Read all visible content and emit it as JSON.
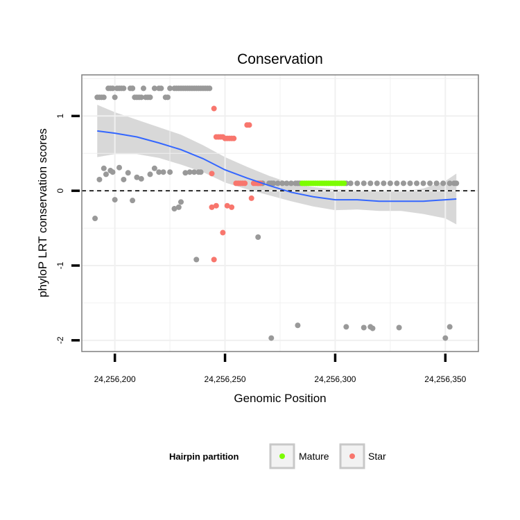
{
  "chart_data": {
    "type": "scatter",
    "title": "Conservation",
    "xlabel": "Genomic Position",
    "ylabel": "phyloP LRT conservation scores",
    "xlim": [
      24256185,
      24256365
    ],
    "ylim": [
      -2.15,
      1.55
    ],
    "x_ticks": [
      24256200,
      24256250,
      24256300,
      24256350
    ],
    "x_tick_labels": [
      "24,256,200",
      "24,256,250",
      "24,256,300",
      "24,256,350"
    ],
    "y_ticks": [
      -2,
      -1,
      0,
      1
    ],
    "y_tick_labels": [
      "-2",
      "-1",
      "0",
      "1"
    ],
    "grid": true,
    "reference_line": {
      "y": 0,
      "style": "dashed"
    },
    "legend": {
      "title": "Hairpin partition",
      "position": "bottom",
      "entries": [
        {
          "label": "Mature",
          "color": "#7cfc00"
        },
        {
          "label": "Star",
          "color": "#f8766d"
        }
      ]
    },
    "colors": {
      "other": "#999999",
      "mature": "#7cfc00",
      "star": "#f8766d",
      "smooth": "#3366ff",
      "band": "#d4d4d4"
    },
    "series": [
      {
        "name": "Other",
        "x": [
          24256192,
          24256193,
          24256194,
          24256195,
          24256197,
          24256198,
          24256199,
          24256200,
          24256201,
          24256202,
          24256203,
          24256204,
          24256207,
          24256208,
          24256208,
          24256209,
          24256210,
          24256211,
          24256212,
          24256213,
          24256214,
          24256215,
          24256216,
          24256218,
          24256220,
          24256221,
          24256223,
          24256224,
          24256225,
          24256227,
          24256228,
          24256229,
          24256230,
          24256231,
          24256232,
          24256233,
          24256234,
          24256235,
          24256236,
          24256237,
          24256238,
          24256239,
          24256240,
          24256241,
          24256242,
          24256243,
          24256265,
          24256266,
          24256267,
          24256267,
          24256270,
          24256271,
          24256272,
          24256274,
          24256276,
          24256278,
          24256280,
          24256282,
          24256283,
          24256284,
          24256305,
          24256307,
          24256310,
          24256313,
          24256316,
          24256319,
          24256322,
          24256325,
          24256328,
          24256331,
          24256334,
          24256337,
          24256340,
          24256343,
          24256346,
          24256349,
          24256352,
          24256354,
          24256355,
          24256191,
          24256193,
          24256195,
          24256196,
          24256198,
          24256199,
          24256200,
          24256202,
          24256204,
          24256206,
          24256208,
          24256210,
          24256212,
          24256216,
          24256218,
          24256220,
          24256222,
          24256225,
          24256227,
          24256229,
          24256230,
          24256232,
          24256234,
          24256236,
          24256237,
          24256238,
          24256239,
          24256265,
          24256271,
          24256283,
          24256305,
          24256313,
          24256316,
          24256317,
          24256329,
          24256350,
          24256352
        ],
        "y": [
          1.25,
          1.25,
          1.25,
          1.25,
          1.37,
          1.37,
          1.37,
          1.25,
          1.37,
          1.37,
          1.37,
          1.37,
          1.37,
          1.37,
          1.37,
          1.25,
          1.25,
          1.25,
          1.25,
          1.37,
          1.25,
          1.25,
          1.25,
          1.37,
          1.37,
          1.37,
          1.25,
          1.25,
          1.37,
          1.37,
          1.37,
          1.37,
          1.37,
          1.37,
          1.37,
          1.37,
          1.37,
          1.37,
          1.37,
          1.37,
          1.37,
          1.37,
          1.37,
          1.37,
          1.37,
          1.37,
          0.1,
          0.1,
          0.1,
          0.1,
          0.1,
          0.1,
          0.1,
          0.1,
          0.1,
          0.1,
          0.1,
          0.1,
          0.1,
          0.1,
          0.1,
          0.1,
          0.1,
          0.1,
          0.1,
          0.1,
          0.1,
          0.1,
          0.1,
          0.1,
          0.1,
          0.1,
          0.1,
          0.1,
          0.1,
          0.1,
          0.1,
          0.1,
          0.1,
          -0.37,
          0.15,
          0.3,
          0.22,
          0.27,
          0.25,
          -0.12,
          0.31,
          0.15,
          0.24,
          -0.13,
          0.18,
          0.16,
          0.22,
          0.3,
          0.25,
          0.25,
          0.25,
          -0.24,
          -0.22,
          -0.15,
          0.24,
          0.25,
          0.25,
          -0.92,
          0.25,
          0.25,
          -0.62,
          -1.97,
          -1.8,
          -1.82,
          -1.83,
          -1.82,
          -1.84,
          -1.83,
          -1.97,
          -1.82
        ]
      },
      {
        "name": "Mature",
        "x": [
          24256285,
          24256286,
          24256287,
          24256288,
          24256289,
          24256290,
          24256291,
          24256292,
          24256293,
          24256294,
          24256295,
          24256296,
          24256297,
          24256298,
          24256299,
          24256300,
          24256301,
          24256302,
          24256303,
          24256304
        ],
        "y": [
          0.1,
          0.1,
          0.1,
          0.1,
          0.1,
          0.1,
          0.1,
          0.1,
          0.1,
          0.1,
          0.1,
          0.1,
          0.1,
          0.1,
          0.1,
          0.1,
          0.1,
          0.1,
          0.1,
          0.1
        ]
      },
      {
        "name": "Star",
        "x": [
          24256245,
          24256246,
          24256247,
          24256248,
          24256249,
          24256250,
          24256251,
          24256252,
          24256253,
          24256254,
          24256255,
          24256256,
          24256257,
          24256258,
          24256259,
          24256260,
          24256261,
          24256262,
          24256263,
          24256264,
          24256265,
          24256266,
          24256244,
          24256244,
          24256246,
          24256245,
          24256249,
          24256251,
          24256253
        ],
        "y": [
          1.1,
          0.72,
          0.72,
          0.72,
          0.72,
          0.7,
          0.7,
          0.7,
          0.7,
          0.7,
          0.1,
          0.1,
          0.1,
          0.1,
          0.1,
          0.88,
          0.88,
          -0.1,
          0.1,
          0.1,
          0.1,
          0.1,
          0.23,
          -0.22,
          -0.2,
          -0.92,
          -0.56,
          -0.2,
          -0.22
        ]
      }
    ],
    "smooth": {
      "x": [
        24256192,
        24256200,
        24256210,
        24256220,
        24256230,
        24256240,
        24256250,
        24256260,
        24256270,
        24256280,
        24256290,
        24256300,
        24256310,
        24256320,
        24256330,
        24256340,
        24256350,
        24256355
      ],
      "y": [
        0.8,
        0.77,
        0.72,
        0.64,
        0.55,
        0.43,
        0.28,
        0.17,
        0.07,
        -0.02,
        -0.08,
        -0.12,
        -0.12,
        -0.14,
        -0.14,
        -0.14,
        -0.12,
        -0.11
      ],
      "upper": [
        1.15,
        1.05,
        0.95,
        0.85,
        0.75,
        0.61,
        0.45,
        0.32,
        0.2,
        0.1,
        0.05,
        0.02,
        0.01,
        -0.01,
        -0.01,
        0.03,
        0.13,
        0.23
      ],
      "lower": [
        0.45,
        0.49,
        0.49,
        0.44,
        0.35,
        0.25,
        0.11,
        0.02,
        -0.06,
        -0.14,
        -0.21,
        -0.26,
        -0.25,
        -0.27,
        -0.27,
        -0.31,
        -0.37,
        -0.45
      ]
    }
  }
}
